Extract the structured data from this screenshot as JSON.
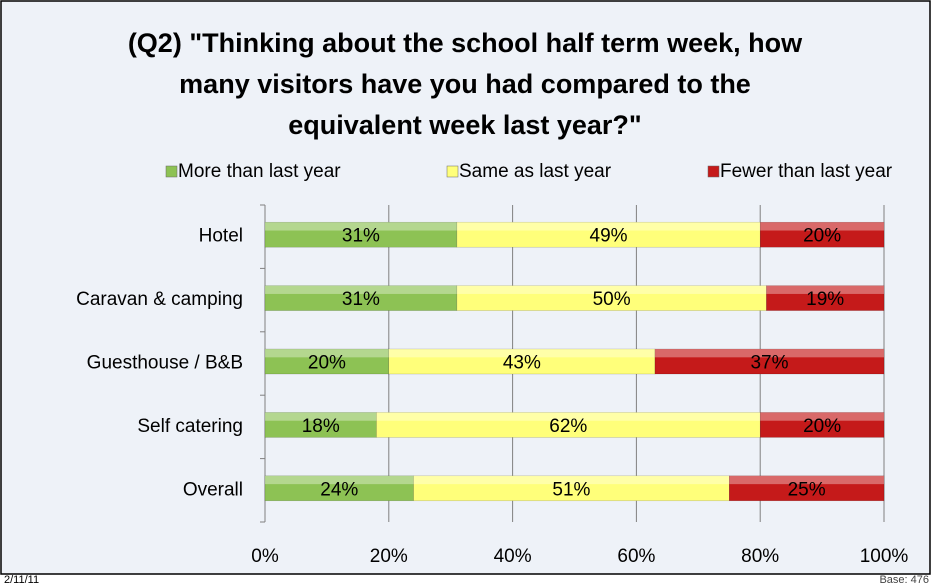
{
  "chart_data": {
    "type": "stacked-barh",
    "title": [
      "(Q2) \"Thinking about the school half term week, how",
      "many visitors have you had compared to the",
      "equivalent week last year?\""
    ],
    "categories": [
      "Hotel",
      "Caravan & camping",
      "Guesthouse / B&B",
      "Self catering",
      "Overall"
    ],
    "series": [
      {
        "name": "More than last year",
        "color": "#8dc254",
        "values": [
          31,
          31,
          20,
          18,
          24
        ],
        "value_labels": [
          "31%",
          "31%",
          "20%",
          "18%",
          "24%"
        ]
      },
      {
        "name": "Same as last year",
        "color": "#ffff7a",
        "values": [
          49,
          50,
          43,
          62,
          51
        ],
        "value_labels": [
          "49%",
          "50%",
          "43%",
          "62%",
          "51%"
        ]
      },
      {
        "name": "Fewer than last year",
        "color": "#c51a1a",
        "values": [
          20,
          19,
          37,
          20,
          25
        ],
        "value_labels": [
          "20%",
          "19%",
          "37%",
          "20%",
          "25%"
        ]
      }
    ],
    "xlim": [
      0,
      100
    ],
    "xticks": [
      {
        "value": 0,
        "label": "0%"
      },
      {
        "value": 20,
        "label": "20%"
      },
      {
        "value": 40,
        "label": "40%"
      },
      {
        "value": 60,
        "label": "60%"
      },
      {
        "value": 80,
        "label": "80%"
      },
      {
        "value": 100,
        "label": "100%"
      }
    ],
    "grid": true,
    "legend": "top",
    "footer": {
      "date": "2/11/11",
      "base": "Base: 476"
    }
  }
}
